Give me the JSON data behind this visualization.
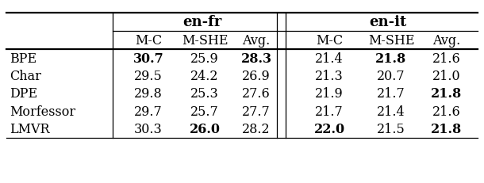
{
  "rows": [
    "BPE",
    "Char",
    "DPE",
    "Morfessor",
    "LMVR"
  ],
  "data": [
    [
      "BPE",
      "30.7",
      "25.9",
      "28.3",
      "21.4",
      "21.8",
      "21.6"
    ],
    [
      "Char",
      "29.5",
      "24.2",
      "26.9",
      "21.3",
      "20.7",
      "21.0"
    ],
    [
      "DPE",
      "29.8",
      "25.3",
      "27.6",
      "21.9",
      "21.7",
      "21.8"
    ],
    [
      "Morfessor",
      "29.7",
      "25.7",
      "27.7",
      "21.7",
      "21.4",
      "21.6"
    ],
    [
      "LMVR",
      "30.3",
      "26.0",
      "28.2",
      "22.0",
      "21.5",
      "21.8"
    ]
  ],
  "bold": [
    [
      true,
      false,
      true,
      false,
      true,
      false
    ],
    [
      false,
      false,
      false,
      false,
      false,
      false
    ],
    [
      false,
      false,
      false,
      false,
      false,
      true
    ],
    [
      false,
      false,
      false,
      false,
      false,
      false
    ],
    [
      false,
      true,
      false,
      true,
      false,
      true
    ]
  ],
  "background": "#ffffff",
  "fontsize": 11.5
}
